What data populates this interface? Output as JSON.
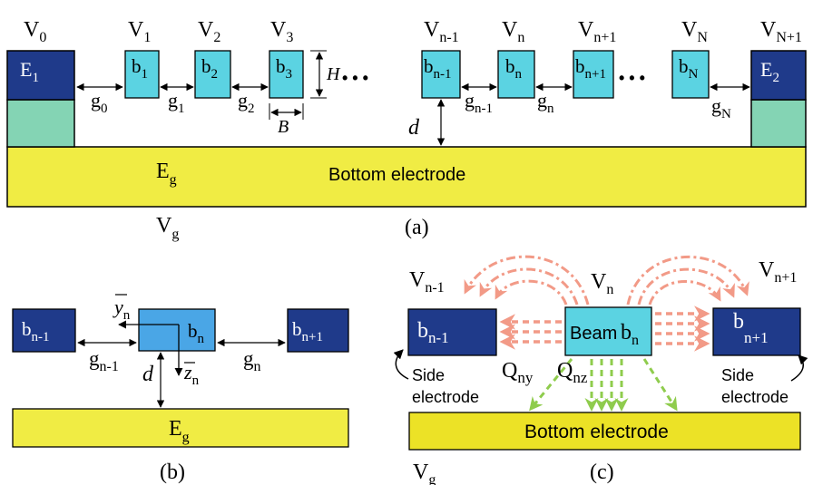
{
  "colors": {
    "dark_blue": "#1f3a8a",
    "cyan": "#5bd3e2",
    "beam_blue": "#4aa6e6",
    "teal": "#84d4b4",
    "yellow": "#f0ec44",
    "yellow_b": "#ece226",
    "arrow_salmon": "#f29a87",
    "arrow_green": "#8fcc4d"
  },
  "panel_a": {
    "v0": {
      "main": "V",
      "sub": "0"
    },
    "v1": {
      "main": "V",
      "sub": "1"
    },
    "v2": {
      "main": "V",
      "sub": "2"
    },
    "v3": {
      "main": "V",
      "sub": "3"
    },
    "vn1": {
      "main": "V",
      "sub": "n-1"
    },
    "vn": {
      "main": "V",
      "sub": "n"
    },
    "vnp1": {
      "main": "V",
      "sub": "n+1"
    },
    "vN": {
      "main": "V",
      "sub": "N"
    },
    "vNp1": {
      "main": "V",
      "sub": "N+1"
    },
    "e1": {
      "main": "E",
      "sub": "1"
    },
    "e2": {
      "main": "E",
      "sub": "2"
    },
    "b1": {
      "main": "b",
      "sub": "1"
    },
    "b2": {
      "main": "b",
      "sub": "2"
    },
    "b3": {
      "main": "b",
      "sub": "3"
    },
    "bn1": {
      "main": "b",
      "sub": "n-1"
    },
    "bn": {
      "main": "b",
      "sub": "n"
    },
    "bnp1": {
      "main": "b",
      "sub": "n+1"
    },
    "bN": {
      "main": "b",
      "sub": "N"
    },
    "g0": {
      "main": "g",
      "sub": "0"
    },
    "g1": {
      "main": "g",
      "sub": "1"
    },
    "g2": {
      "main": "g",
      "sub": "2"
    },
    "gn1": {
      "main": "g",
      "sub": "n-1"
    },
    "gn": {
      "main": "g",
      "sub": "n"
    },
    "gN": {
      "main": "g",
      "sub": "N"
    },
    "H": "H",
    "B": "B",
    "d": "d",
    "eg": {
      "main": "E",
      "sub": "g"
    },
    "vg": {
      "main": "V",
      "sub": "g"
    },
    "bottom": "Bottom electrode",
    "dots": "• • •",
    "caption": "(a)"
  },
  "panel_b": {
    "bn1": {
      "main": "b",
      "sub": "n-1"
    },
    "bn": {
      "main": "b",
      "sub": "n"
    },
    "bnp1": {
      "main": "b",
      "sub": "n+1"
    },
    "yn": {
      "main": "y",
      "sub": "n"
    },
    "zn": {
      "main": "z",
      "sub": "n"
    },
    "gn1": {
      "main": "g",
      "sub": "n-1"
    },
    "gn": {
      "main": "g",
      "sub": "n"
    },
    "d": "d",
    "eg": {
      "main": "E",
      "sub": "g"
    },
    "caption": "(b)"
  },
  "panel_c": {
    "vn1": {
      "main": "V",
      "sub": "n-1"
    },
    "vn": {
      "main": "V",
      "sub": "n"
    },
    "vnp1": {
      "main": "V",
      "sub": "n+1"
    },
    "bn1": {
      "main": "b",
      "sub": "n-1"
    },
    "beam": "Beam",
    "bn": {
      "main": "b",
      "sub": "n"
    },
    "bnp1": {
      "main": "b",
      "sub": "n+1"
    },
    "qny": {
      "main": "Q",
      "sub": "ny"
    },
    "qnz": {
      "main": "Q",
      "sub": "nz"
    },
    "side_left_1": "Side",
    "side_left_2": "electrode",
    "side_right_1": "Side",
    "side_right_2": "electrode",
    "bottom": "Bottom electrode",
    "vg": {
      "main": "V",
      "sub": "g"
    },
    "caption": "(c)"
  }
}
